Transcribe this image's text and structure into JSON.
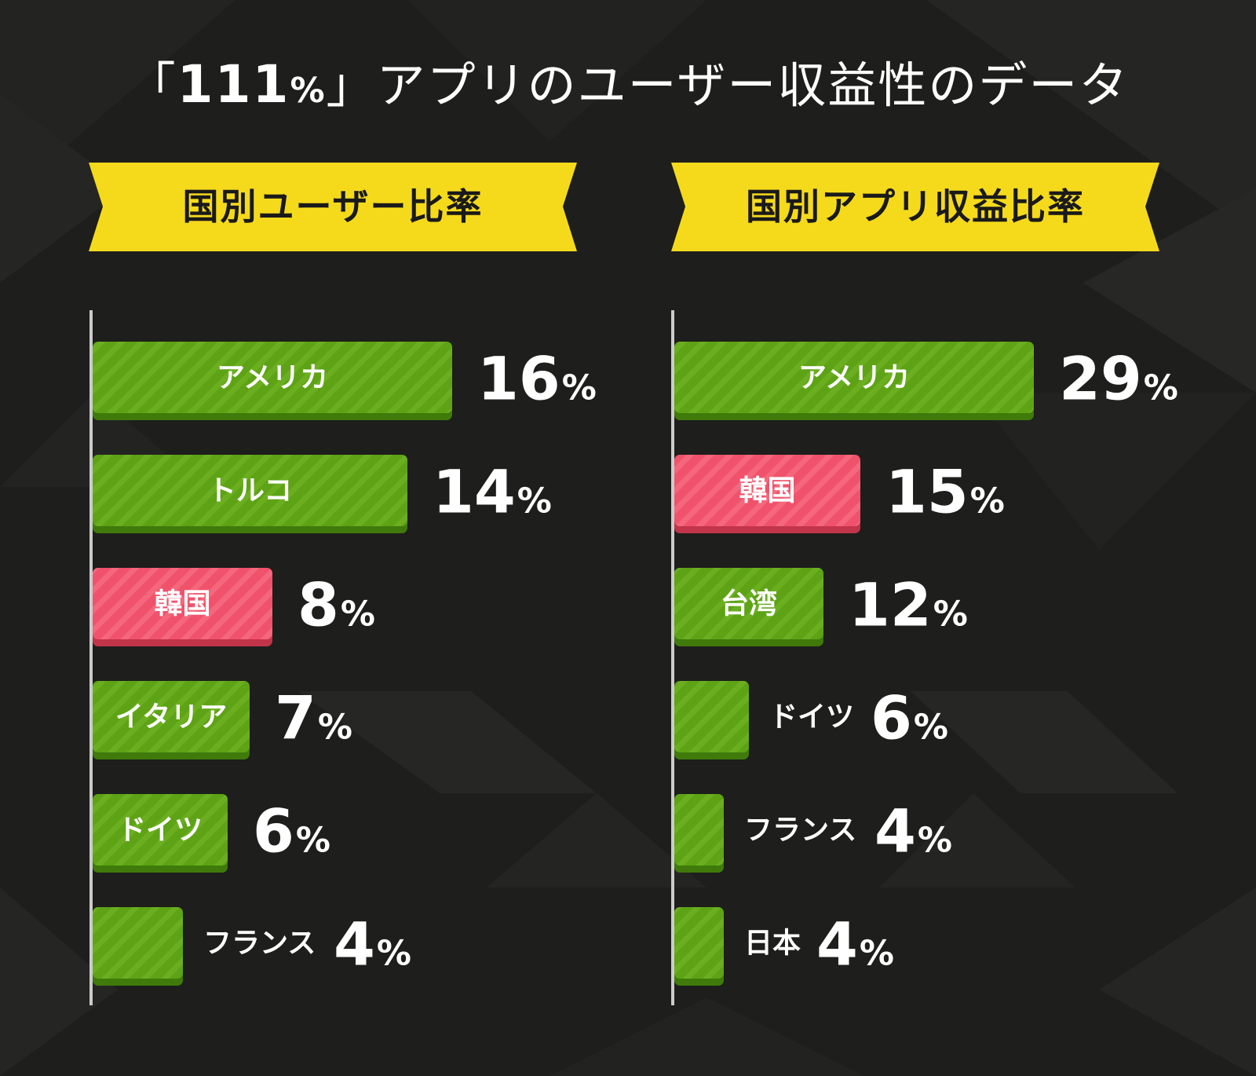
{
  "title": {
    "bracket_open": "「",
    "number": "111",
    "percent": "%",
    "bracket_close": "」",
    "rest": "アプリのユーザー収益性のデータ"
  },
  "colors": {
    "background": "#1e1e1c",
    "ribbon": "#f5da1c",
    "bar_green": "#5da315",
    "bar_green_shadow": "#3f7a0b",
    "bar_red": "#f0526b",
    "bar_red_shadow": "#c23449",
    "axis": "#cccccc",
    "text": "#ffffff"
  },
  "chart_data": [
    {
      "type": "bar",
      "orientation": "horizontal",
      "title": "国別ユーザー比率",
      "unit": "%",
      "xlim": [
        0,
        16
      ],
      "categories": [
        "アメリカ",
        "トルコ",
        "韓国",
        "イタリア",
        "ドイツ",
        "フランス"
      ],
      "values": [
        16,
        14,
        8,
        7,
        6,
        4
      ],
      "highlight": [
        "normal",
        "normal",
        "highlight",
        "normal",
        "normal",
        "normal"
      ],
      "label_position": [
        "inside",
        "inside",
        "inside",
        "inside",
        "inside",
        "outside"
      ]
    },
    {
      "type": "bar",
      "orientation": "horizontal",
      "title": "国別アプリ収益比率",
      "unit": "%",
      "xlim": [
        0,
        29
      ],
      "categories": [
        "アメリカ",
        "韓国",
        "台湾",
        "ドイツ",
        "フランス",
        "日本"
      ],
      "values": [
        29,
        15,
        12,
        6,
        4,
        4
      ],
      "highlight": [
        "normal",
        "highlight",
        "normal",
        "normal",
        "normal",
        "normal"
      ],
      "label_position": [
        "inside",
        "inside",
        "inside",
        "outside",
        "outside",
        "outside"
      ]
    }
  ]
}
